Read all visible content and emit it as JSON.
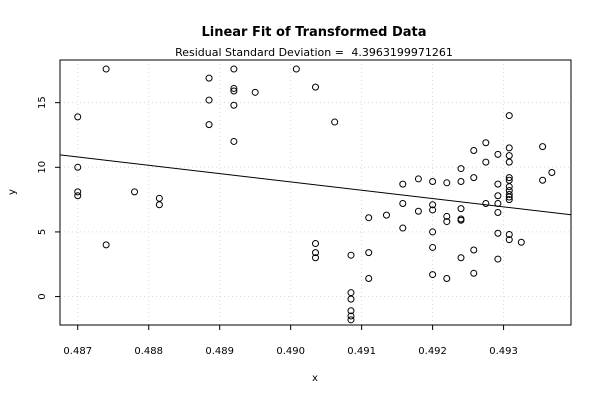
{
  "chart_data": {
    "type": "scatter",
    "title": "Linear Fit of Transformed Data",
    "subtitle_label": "Residual Standard Deviation =",
    "subtitle_value": "4.3963199971261",
    "xlabel": "x",
    "ylabel": "y",
    "xlim": [
      0.48675,
      0.49395
    ],
    "ylim": [
      -2.2,
      18.3
    ],
    "x_ticks": [
      0.487,
      0.488,
      0.489,
      0.49,
      0.491,
      0.492,
      0.493
    ],
    "x_tick_labels": [
      "0.487",
      "0.488",
      "0.489",
      "0.490",
      "0.491",
      "0.492",
      "0.493"
    ],
    "y_ticks": [
      0,
      5,
      10,
      15
    ],
    "y_tick_labels": [
      "0",
      "5",
      "10",
      "15"
    ],
    "grid": true,
    "fit_line": {
      "x": [
        0.48675,
        0.49395
      ],
      "y": [
        10.96,
        6.33
      ]
    },
    "points": [
      [
        0.487,
        13.9
      ],
      [
        0.487,
        10.0
      ],
      [
        0.487,
        8.1
      ],
      [
        0.487,
        7.8
      ],
      [
        0.4874,
        17.6
      ],
      [
        0.4874,
        4.0
      ],
      [
        0.4878,
        8.1
      ],
      [
        0.48815,
        7.6
      ],
      [
        0.48815,
        7.1
      ],
      [
        0.48885,
        16.9
      ],
      [
        0.48885,
        15.2
      ],
      [
        0.48885,
        13.3
      ],
      [
        0.4892,
        17.6
      ],
      [
        0.4892,
        16.1
      ],
      [
        0.4892,
        15.9
      ],
      [
        0.4892,
        14.8
      ],
      [
        0.4892,
        12.0
      ],
      [
        0.4895,
        15.8
      ],
      [
        0.49008,
        17.6
      ],
      [
        0.49035,
        16.2
      ],
      [
        0.49035,
        4.1
      ],
      [
        0.49035,
        3.4
      ],
      [
        0.49035,
        3.0
      ],
      [
        0.49062,
        13.5
      ],
      [
        0.49085,
        3.2
      ],
      [
        0.49085,
        0.3
      ],
      [
        0.49085,
        -0.2
      ],
      [
        0.49085,
        -1.1
      ],
      [
        0.49085,
        -1.5
      ],
      [
        0.49085,
        -1.8
      ],
      [
        0.4911,
        6.1
      ],
      [
        0.4911,
        3.4
      ],
      [
        0.4911,
        1.4
      ],
      [
        0.49135,
        6.3
      ],
      [
        0.49158,
        8.7
      ],
      [
        0.49158,
        7.2
      ],
      [
        0.49158,
        5.3
      ],
      [
        0.4918,
        9.1
      ],
      [
        0.4918,
        6.6
      ],
      [
        0.492,
        8.9
      ],
      [
        0.492,
        7.1
      ],
      [
        0.492,
        6.7
      ],
      [
        0.492,
        5.0
      ],
      [
        0.492,
        3.8
      ],
      [
        0.492,
        1.7
      ],
      [
        0.4922,
        8.8
      ],
      [
        0.4922,
        6.2
      ],
      [
        0.4922,
        5.8
      ],
      [
        0.4922,
        1.4
      ],
      [
        0.4924,
        9.9
      ],
      [
        0.4924,
        8.9
      ],
      [
        0.4924,
        6.8
      ],
      [
        0.4924,
        6.0
      ],
      [
        0.4924,
        5.9
      ],
      [
        0.4924,
        3.0
      ],
      [
        0.49258,
        11.3
      ],
      [
        0.49258,
        9.2
      ],
      [
        0.49258,
        3.6
      ],
      [
        0.49258,
        1.8
      ],
      [
        0.49275,
        11.9
      ],
      [
        0.49275,
        10.4
      ],
      [
        0.49275,
        7.2
      ],
      [
        0.49292,
        11.0
      ],
      [
        0.49292,
        8.7
      ],
      [
        0.49292,
        7.8
      ],
      [
        0.49292,
        7.2
      ],
      [
        0.49292,
        6.5
      ],
      [
        0.49292,
        4.9
      ],
      [
        0.49292,
        2.9
      ],
      [
        0.49308,
        14.0
      ],
      [
        0.49308,
        11.5
      ],
      [
        0.49308,
        10.9
      ],
      [
        0.49308,
        10.4
      ],
      [
        0.49308,
        9.2
      ],
      [
        0.49308,
        9.0
      ],
      [
        0.49308,
        8.5
      ],
      [
        0.49308,
        8.2
      ],
      [
        0.49308,
        7.9
      ],
      [
        0.49308,
        7.7
      ],
      [
        0.49308,
        7.5
      ],
      [
        0.49308,
        4.8
      ],
      [
        0.49308,
        4.4
      ],
      [
        0.49325,
        4.2
      ],
      [
        0.49355,
        11.6
      ],
      [
        0.49355,
        9.0
      ],
      [
        0.49368,
        9.6
      ]
    ]
  }
}
